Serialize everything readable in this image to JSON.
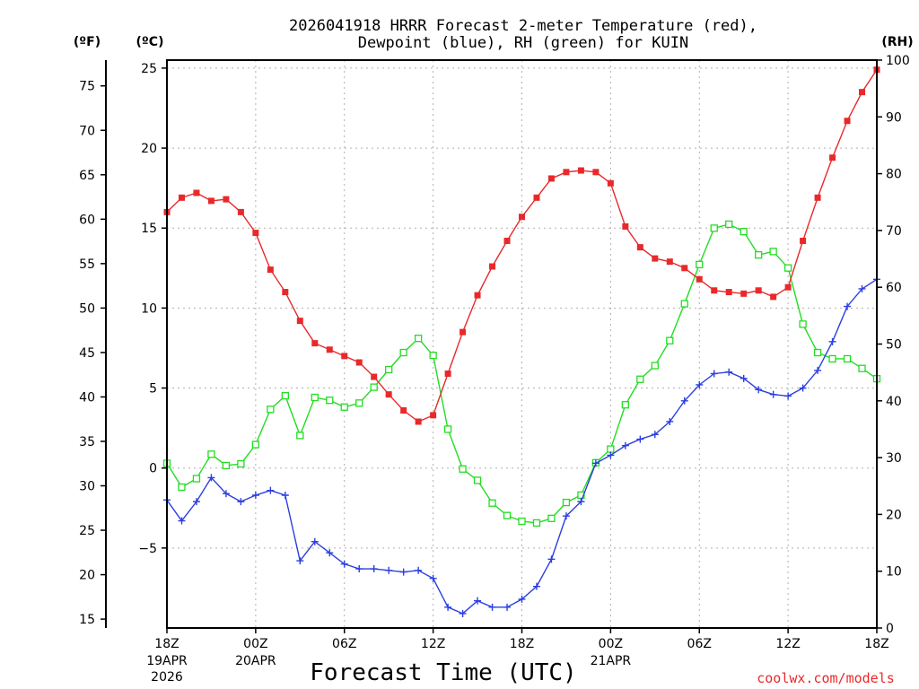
{
  "chart_data": {
    "type": "line",
    "title_line1": "2026041918 HRRR Forecast 2-meter Temperature (red),",
    "title_line2": "Dewpoint (blue), RH (green) for KUIN",
    "xlabel": "Forecast Time (UTC)",
    "credit": "coolwx.com/models",
    "units": {
      "left_f": "(ºF)",
      "left_c": "(ºC)",
      "right_rh": "(RH)"
    },
    "c_axis": {
      "range": [
        -10,
        25.5
      ],
      "ticks": [
        "25",
        "20",
        "15",
        "10",
        "5",
        "0",
        "−5"
      ],
      "tick_values": [
        25,
        20,
        15,
        10,
        5,
        0,
        -5
      ]
    },
    "f_axis": {
      "ticks": [
        "75",
        "70",
        "65",
        "60",
        "55",
        "50",
        "45",
        "40",
        "35",
        "30",
        "25",
        "20",
        "15"
      ],
      "tick_values": [
        75,
        70,
        65,
        60,
        55,
        50,
        45,
        40,
        35,
        30,
        25,
        20,
        15
      ]
    },
    "rh_axis": {
      "range": [
        0,
        100
      ],
      "ticks": [
        "100",
        "90",
        "80",
        "70",
        "60",
        "50",
        "40",
        "30",
        "20",
        "10",
        "0"
      ],
      "tick_values": [
        100,
        90,
        80,
        70,
        60,
        50,
        40,
        30,
        20,
        10,
        0
      ]
    },
    "x_range_hours": [
      0,
      48
    ],
    "x_ticks": [
      {
        "hour": 0,
        "label": "18Z",
        "date": "19APR",
        "year": "2026"
      },
      {
        "hour": 6,
        "label": "00Z",
        "date": "20APR",
        "year": ""
      },
      {
        "hour": 12,
        "label": "06Z",
        "date": "",
        "year": ""
      },
      {
        "hour": 18,
        "label": "12Z",
        "date": "",
        "year": ""
      },
      {
        "hour": 24,
        "label": "18Z",
        "date": "",
        "year": ""
      },
      {
        "hour": 30,
        "label": "00Z",
        "date": "21APR",
        "year": ""
      },
      {
        "hour": 36,
        "label": "06Z",
        "date": "",
        "year": ""
      },
      {
        "hour": 42,
        "label": "12Z",
        "date": "",
        "year": ""
      },
      {
        "hour": 48,
        "label": "18Z",
        "date": "",
        "year": ""
      }
    ],
    "series": [
      {
        "name": "Temperature",
        "unit": "C",
        "color": "#e8292b",
        "marker": "filled-square",
        "values": [
          16.0,
          16.9,
          17.2,
          16.7,
          16.8,
          16.0,
          14.7,
          12.4,
          11.0,
          9.2,
          7.8,
          7.4,
          7.0,
          6.6,
          5.7,
          4.6,
          3.6,
          2.9,
          3.3,
          5.9,
          8.5,
          10.8,
          12.6,
          14.2,
          15.7,
          16.9,
          18.1,
          18.5,
          18.6,
          18.5,
          17.8,
          15.1,
          13.8,
          13.1,
          12.9,
          12.5,
          11.8,
          11.1,
          11.0,
          10.9,
          11.1,
          10.7,
          11.3,
          14.2,
          16.9,
          19.4,
          21.7,
          23.5,
          24.9
        ]
      },
      {
        "name": "Dewpoint",
        "unit": "C",
        "color": "#2b3fe0",
        "marker": "plus",
        "values": [
          -2.0,
          -3.3,
          -2.1,
          -0.6,
          -1.6,
          -2.1,
          -1.7,
          -1.4,
          -1.7,
          -5.8,
          -4.6,
          -5.3,
          -6.0,
          -6.3,
          -6.3,
          -6.4,
          -6.5,
          -6.4,
          -6.9,
          -8.7,
          -9.1,
          -8.3,
          -8.7,
          -8.7,
          -8.2,
          -7.4,
          -5.7,
          -3.0,
          -2.1,
          0.3,
          0.8,
          1.4,
          1.8,
          2.1,
          2.9,
          4.2,
          5.2,
          5.9,
          6.0,
          5.6,
          4.9,
          4.6,
          4.5,
          5.0,
          6.1,
          7.9,
          10.1,
          11.2,
          11.8
        ]
      },
      {
        "name": "RH",
        "unit": "%",
        "color": "#22dd22",
        "marker": "open-square",
        "values": [
          29.0,
          24.8,
          26.3,
          30.6,
          28.6,
          28.9,
          32.3,
          38.5,
          40.9,
          33.9,
          40.6,
          40.1,
          38.9,
          39.6,
          42.4,
          45.5,
          48.5,
          51.0,
          48.0,
          35.0,
          28.0,
          26.0,
          22.0,
          19.8,
          18.8,
          18.5,
          19.3,
          22.1,
          23.4,
          29.1,
          31.5,
          39.3,
          43.8,
          46.2,
          50.6,
          57.1,
          64.0,
          70.4,
          71.1,
          69.8,
          65.7,
          66.3,
          63.4,
          53.5,
          48.5,
          47.4,
          47.4,
          45.7,
          43.9
        ]
      }
    ]
  }
}
